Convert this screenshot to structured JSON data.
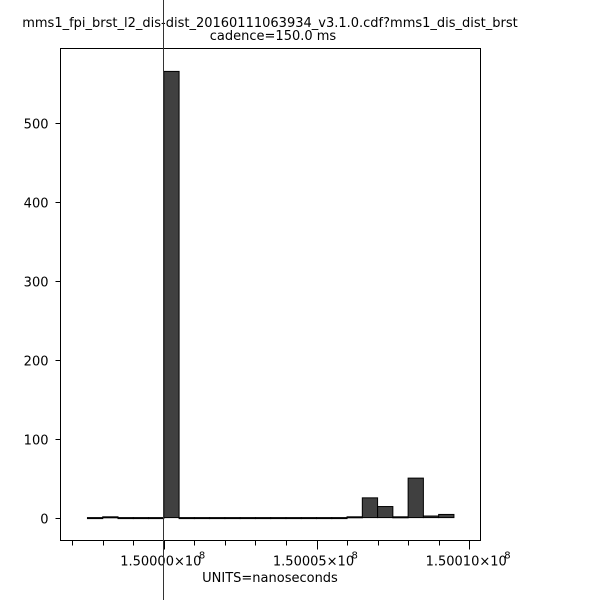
{
  "chart_data": {
    "type": "bar",
    "title": "mms1_fpi_brst_l2_dis-dist_20160111063934_v3.1.0.cdf?mms1_dis_dist_brst",
    "subtitle": "cadence=150.0 ms",
    "xlabel": "UNITS=nanoseconds",
    "ylabel": "",
    "bin_start": 149997500,
    "bin_width": 500,
    "values": [
      0,
      1,
      0,
      0,
      0,
      565,
      0,
      0,
      0,
      0,
      0,
      0,
      0,
      0,
      0,
      0,
      0,
      1,
      25,
      14,
      1,
      50,
      2,
      4
    ],
    "xlim": [
      149996617,
      150010370
    ],
    "ylim": [
      -29,
      594
    ],
    "x_major_ticks": [
      150000000,
      150005000,
      150010000
    ],
    "x_tick_labels": [
      "1.50000×10",
      "1.50005×10",
      "1.50010×10"
    ],
    "x_tick_exponent": "8",
    "x_minor_step": 1000,
    "y_ticks": [
      0,
      100,
      200,
      300,
      400,
      500
    ],
    "y_tick_labels": [
      "0",
      "100",
      "200",
      "300",
      "400",
      "500"
    ],
    "grid": false,
    "bar_color": "#404040",
    "cursor_x": 150000000
  }
}
